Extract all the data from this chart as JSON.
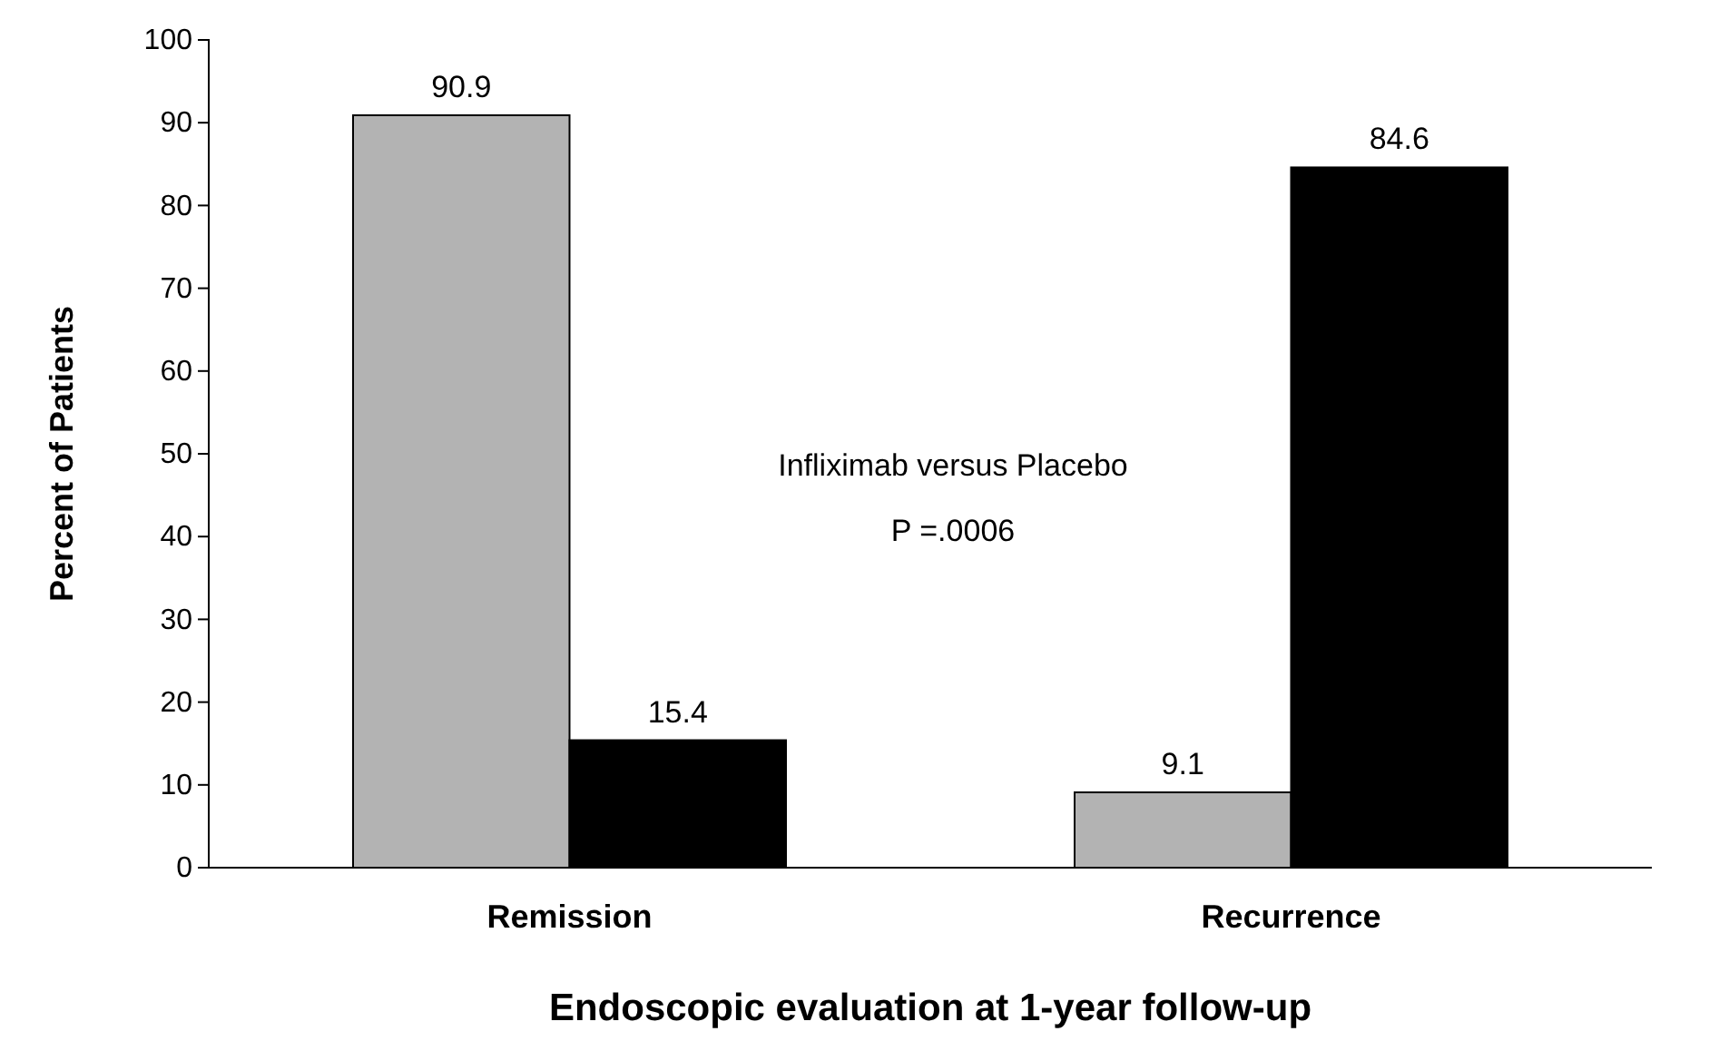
{
  "chart_data": {
    "type": "bar",
    "xlabel": "Endoscopic evaluation at 1-year follow-up",
    "ylabel": "Percent of Patients",
    "categories": [
      "Remission",
      "Recurrence"
    ],
    "series": [
      {
        "color": "#b3b3b3",
        "values": [
          90.9,
          9.1
        ]
      },
      {
        "color": "#000000",
        "values": [
          15.4,
          84.6
        ]
      }
    ],
    "ylim": [
      0,
      100
    ],
    "yticks": [
      0,
      10,
      20,
      30,
      40,
      50,
      60,
      70,
      80,
      90,
      100
    ],
    "grid": false,
    "data_labels": true,
    "annotations": [
      "Infliximab versus Placebo",
      "P =.0006"
    ]
  }
}
